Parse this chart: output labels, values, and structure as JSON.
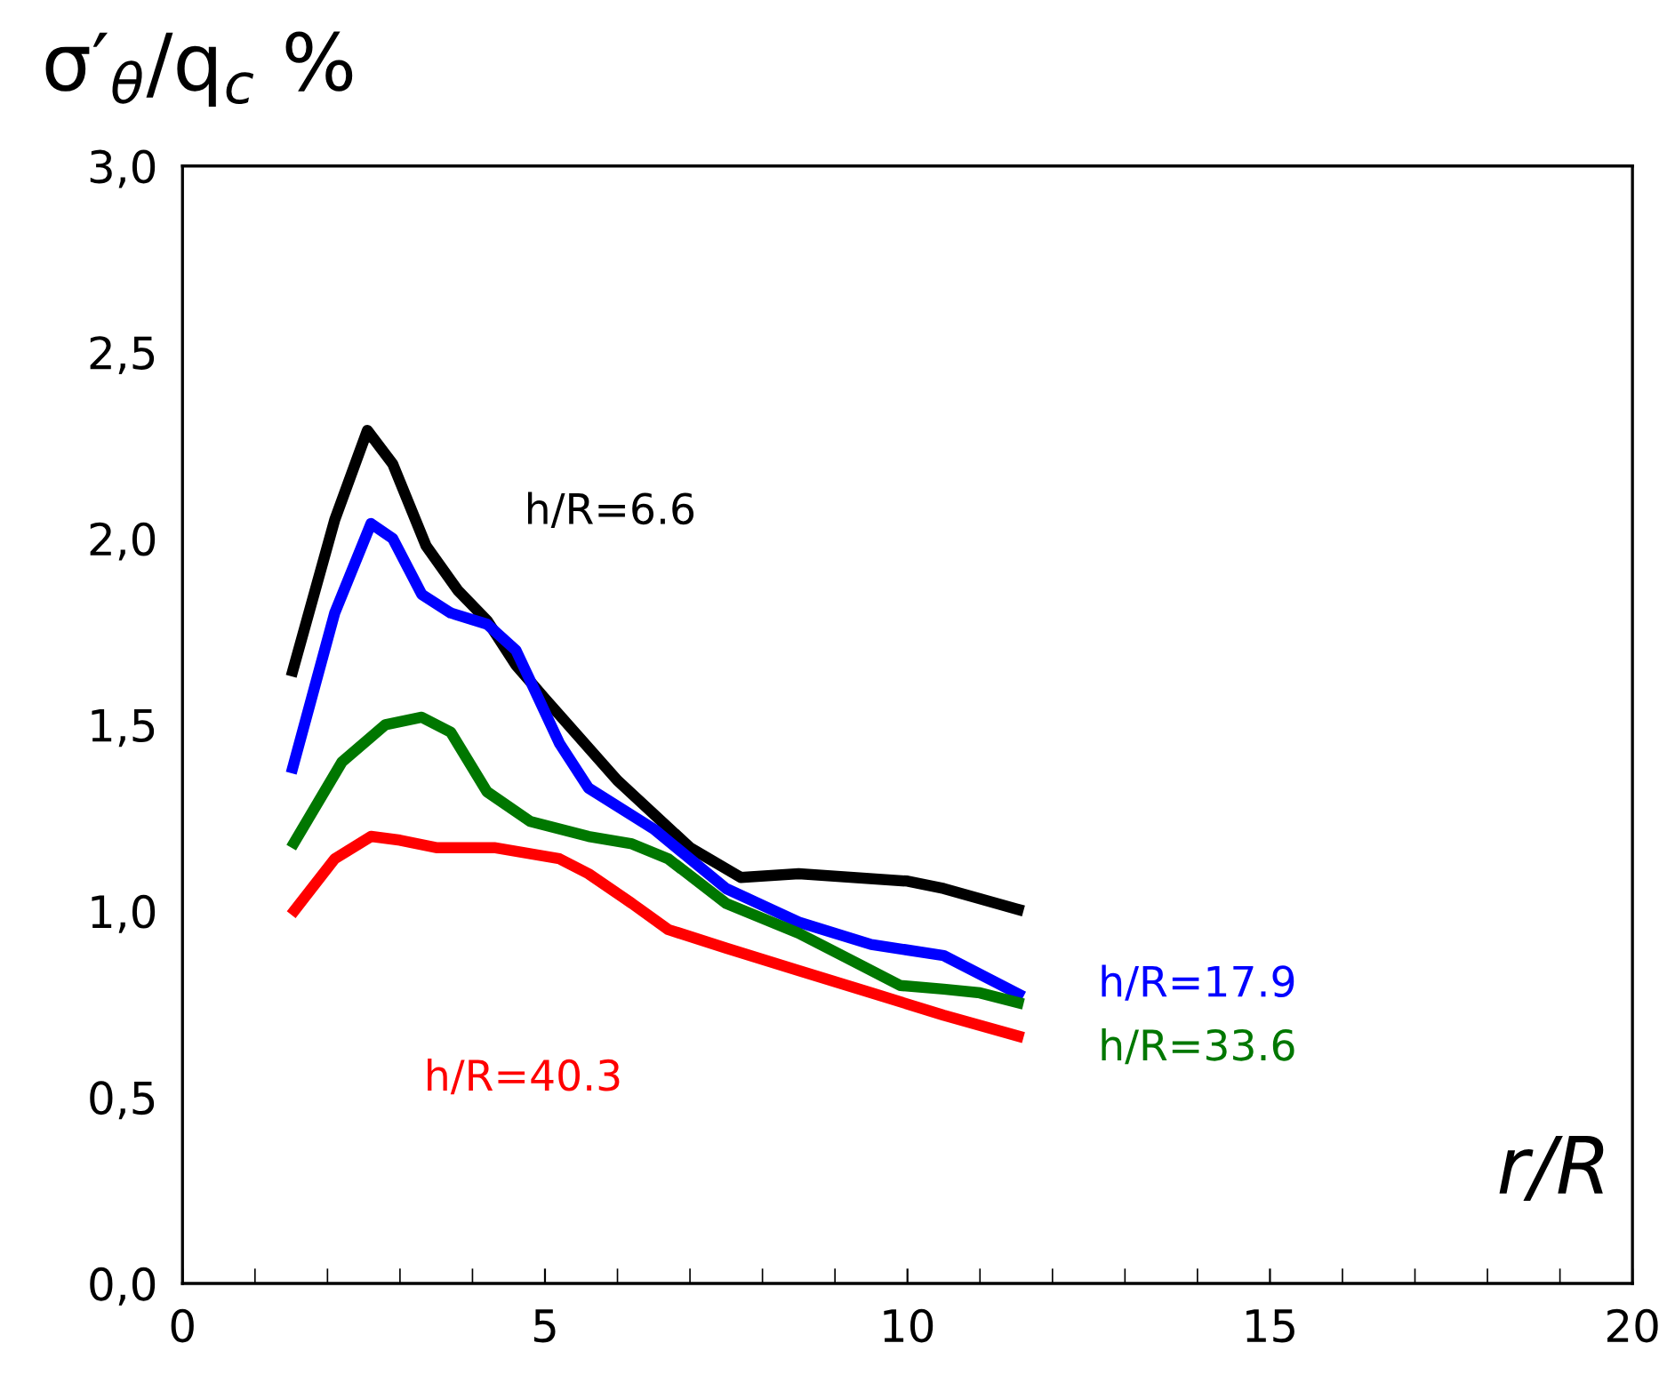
{
  "chart_data": {
    "type": "line",
    "xlabel": "r/R",
    "ylabel": "σ′$_{θ}$/q$_{c}$ %",
    "xlim": [
      0,
      20
    ],
    "xticks": [
      0,
      5,
      10,
      15,
      20
    ],
    "ylim": [
      0,
      3
    ],
    "yticks": [
      {
        "value": 0,
        "label": "0,0"
      },
      {
        "value": 0.5,
        "label": "0,5"
      },
      {
        "value": 1,
        "label": "1,0"
      },
      {
        "value": 1.5,
        "label": "1,5"
      },
      {
        "value": 2,
        "label": "2,0"
      },
      {
        "value": 2.5,
        "label": "2,5"
      },
      {
        "value": 3,
        "label": "3,0"
      }
    ],
    "grid": false,
    "marker": "none",
    "line_style": "solid",
    "series": [
      {
        "color": "#000000",
        "x": [
          1.5,
          2.1,
          2.55,
          2.9,
          3.36,
          3.8,
          4.2,
          4.6,
          5.0,
          6.0,
          7.0,
          7.7,
          8.5,
          10.0,
          10.5,
          11.6
        ],
        "values": [
          1.63,
          2.05,
          2.29,
          2.2,
          1.98,
          1.86,
          1.78,
          1.66,
          1.57,
          1.35,
          1.17,
          1.09,
          1.1,
          1.08,
          1.06,
          1.0
        ]
      },
      {
        "color": "#0000ff",
        "x": [
          1.5,
          2.1,
          2.6,
          2.9,
          3.3,
          3.7,
          4.2,
          4.6,
          5.2,
          5.6,
          6.5,
          7.5,
          8.5,
          9.5,
          10.5,
          11.6
        ],
        "values": [
          1.37,
          1.8,
          2.04,
          2.0,
          1.85,
          1.8,
          1.77,
          1.7,
          1.45,
          1.33,
          1.22,
          1.06,
          0.97,
          0.91,
          0.88,
          0.77
        ]
      },
      {
        "color": "#007700",
        "x": [
          1.5,
          2.2,
          2.8,
          3.3,
          3.7,
          4.2,
          4.8,
          5.6,
          6.2,
          6.7,
          7.5,
          8.5,
          9.3,
          9.9,
          10.5,
          11.0,
          11.6
        ],
        "values": [
          1.17,
          1.4,
          1.5,
          1.52,
          1.48,
          1.32,
          1.24,
          1.2,
          1.18,
          1.14,
          1.02,
          0.94,
          0.86,
          0.8,
          0.79,
          0.78,
          0.75
        ]
      },
      {
        "color": "#ff0000",
        "x": [
          1.5,
          2.1,
          2.6,
          3.0,
          3.5,
          4.3,
          5.2,
          5.6,
          6.2,
          6.7,
          7.5,
          8.5,
          9.5,
          10.5,
          11.6
        ],
        "values": [
          0.99,
          1.14,
          1.2,
          1.19,
          1.17,
          1.17,
          1.14,
          1.1,
          1.02,
          0.95,
          0.9,
          0.84,
          0.78,
          0.72,
          0.66
        ]
      }
    ],
    "annotations": [
      "h/R=6.6",
      "h/R=17.9",
      "h/R=33.6",
      "h/R=40.3"
    ]
  }
}
